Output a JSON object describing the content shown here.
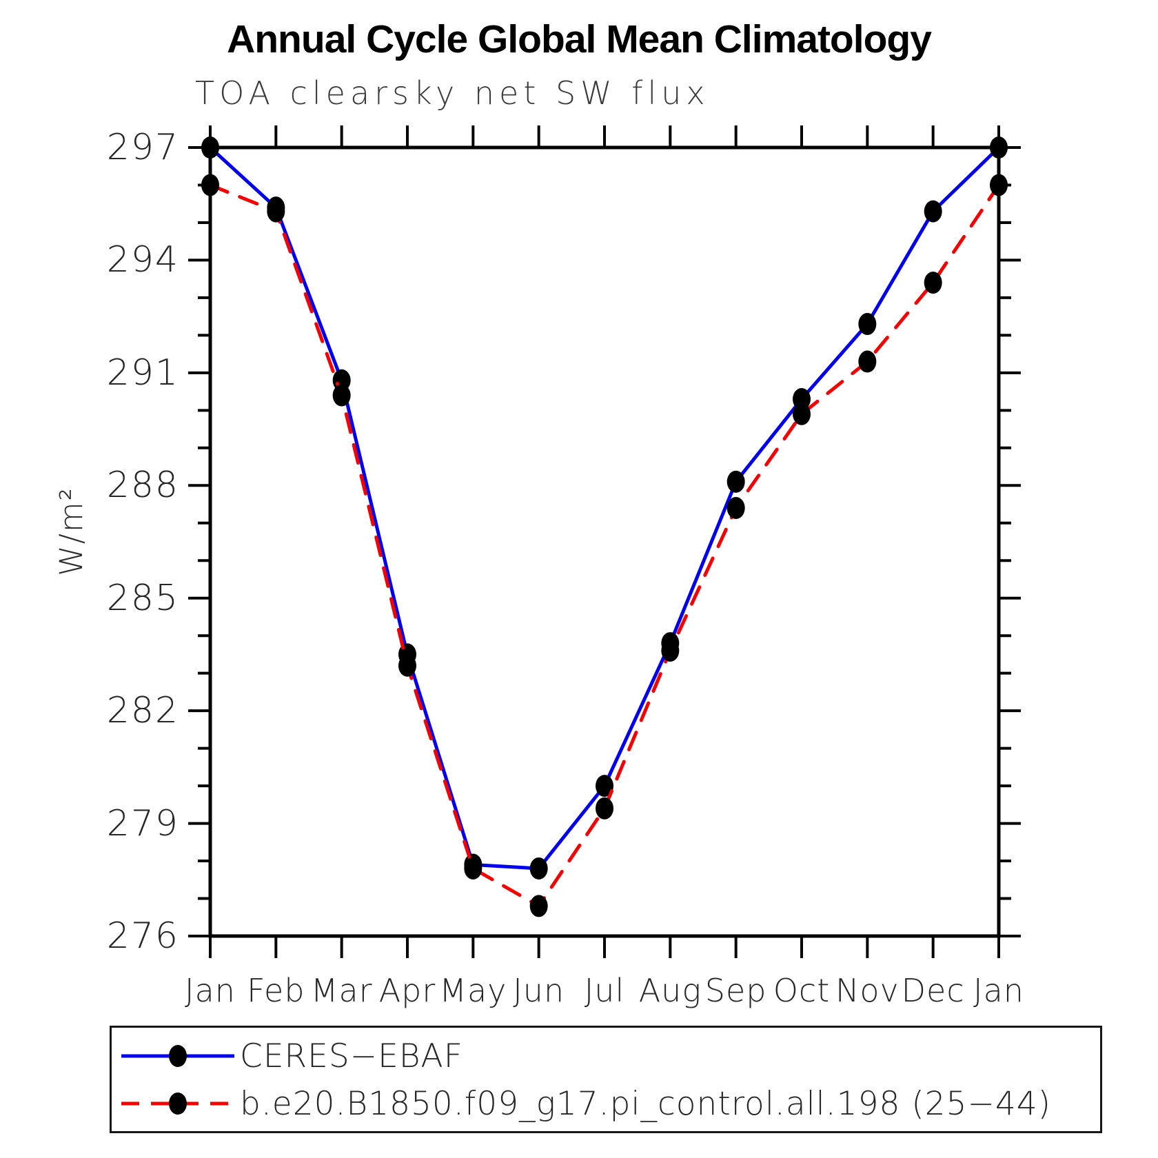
{
  "title": "Annual Cycle Global Mean Climatology",
  "subtitle": "TOA clearsky net SW flux",
  "ylabel": "W/m²",
  "legend": {
    "items": [
      {
        "label": "CERES−EBAF",
        "style": "solid",
        "color": "#0000ee"
      },
      {
        "label": "b.e20.B1850.f09_g17.pi_control.all.198 (25−44)",
        "style": "dashed",
        "color": "#f40000"
      }
    ]
  },
  "chart_data": {
    "type": "line",
    "categories": [
      "Jan",
      "Feb",
      "Mar",
      "Apr",
      "May",
      "Jun",
      "Jul",
      "Aug",
      "Sep",
      "Oct",
      "Nov",
      "Dec",
      "Jan"
    ],
    "series": [
      {
        "name": "CERES-EBAF",
        "color": "#0000ee",
        "style": "solid",
        "values": [
          297.0,
          295.4,
          290.8,
          283.5,
          277.9,
          277.8,
          280.0,
          283.8,
          288.1,
          290.3,
          292.3,
          295.3,
          297.0
        ]
      },
      {
        "name": "b.e20.B1850.f09_g17.pi_control.all.198 (25-44)",
        "color": "#f40000",
        "style": "dashed",
        "values": [
          296.0,
          295.3,
          290.4,
          283.2,
          277.8,
          276.8,
          279.4,
          283.6,
          287.4,
          289.9,
          291.3,
          293.4,
          296.0
        ]
      }
    ],
    "marker": {
      "shape": "dot",
      "color": "#000000"
    },
    "ylim": [
      276,
      297
    ],
    "ytick_major_step": 3,
    "ytick_minor_step": 1,
    "ytick_major_labels": [
      "276",
      "279",
      "282",
      "285",
      "288",
      "291",
      "294",
      "297"
    ],
    "grid": false,
    "legend_position": "bottom"
  }
}
